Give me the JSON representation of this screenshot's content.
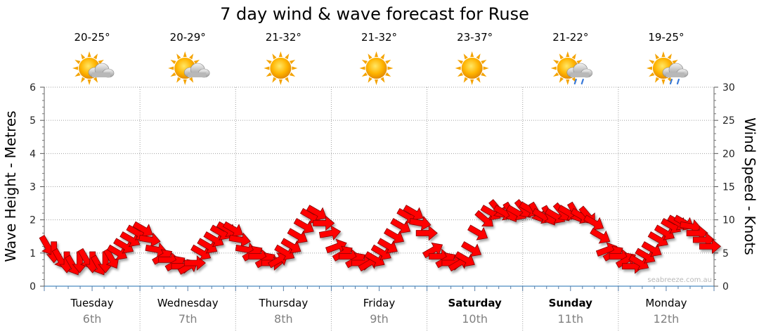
{
  "chart_data": {
    "type": "line",
    "title": "7 day wind & wave forecast for Ruse",
    "ylabel_left": "Wave Height - Metres",
    "ylabel_right": "Wind Speed - Knots",
    "ylim_left": [
      0,
      6
    ],
    "ylim_right": [
      0,
      30
    ],
    "left_ticks": [
      "0",
      "1",
      "2",
      "3",
      "4",
      "5",
      "6"
    ],
    "right_ticks": [
      "0",
      "5",
      "10",
      "15",
      "20",
      "25",
      "30"
    ],
    "grid": true,
    "days": [
      {
        "day": "Tuesday",
        "date": "6th",
        "bold": false,
        "temp": "20-25°",
        "icon": "partly-cloudy-icon"
      },
      {
        "day": "Wednesday",
        "date": "7th",
        "bold": false,
        "temp": "20-29°",
        "icon": "partly-cloudy-icon"
      },
      {
        "day": "Thursday",
        "date": "8th",
        "bold": false,
        "temp": "21-32°",
        "icon": "sunny-icon"
      },
      {
        "day": "Friday",
        "date": "9th",
        "bold": false,
        "temp": "21-32°",
        "icon": "sunny-icon"
      },
      {
        "day": "Saturday",
        "date": "10th",
        "bold": true,
        "temp": "23-37°",
        "icon": "sunny-icon"
      },
      {
        "day": "Sunday",
        "date": "11th",
        "bold": true,
        "temp": "21-22°",
        "icon": "showers-icon"
      },
      {
        "day": "Monday",
        "date": "12th",
        "bold": false,
        "temp": "19-25°",
        "icon": "showers-icon"
      }
    ],
    "series": [
      {
        "name": "Wind Speed",
        "unit": "knots",
        "arrow_color": "#ff0000",
        "values": [
          6,
          5,
          4,
          3.5,
          3,
          3.5,
          4,
          3.5,
          3,
          3.5,
          4,
          5,
          6,
          7,
          8,
          8.5,
          7,
          5.5,
          4.5,
          4,
          3.5,
          3,
          3,
          3.5,
          5,
          6,
          7,
          8,
          8.5,
          8.5,
          7,
          5.5,
          5,
          4.5,
          4,
          3.5,
          4,
          5,
          6,
          7.5,
          9,
          10.5,
          11,
          9.5,
          8,
          6,
          5,
          4.5,
          4,
          3.5,
          3.5,
          4,
          5,
          6,
          7.5,
          9,
          10.5,
          11,
          9.5,
          8,
          5.5,
          4.5,
          4,
          3.5,
          3.5,
          4,
          5.5,
          8,
          10,
          11,
          11.5,
          11,
          11,
          11,
          11.5,
          11.5,
          11,
          10.5,
          10.5,
          10.5,
          11,
          11,
          11,
          10.5,
          10.5,
          9.5,
          7.5,
          5.5,
          5,
          4.5,
          4,
          3,
          3.5,
          4.5,
          5.5,
          7,
          8,
          9,
          9.5,
          9.5,
          9,
          8,
          7,
          6
        ],
        "directions_deg": [
          330,
          0,
          330,
          0,
          330,
          0,
          330,
          0,
          330,
          0,
          330,
          300,
          300,
          300,
          300,
          300,
          280,
          280,
          240,
          270,
          240,
          270,
          240,
          270,
          300,
          300,
          300,
          300,
          300,
          300,
          280,
          280,
          240,
          270,
          240,
          270,
          240,
          300,
          300,
          300,
          300,
          300,
          300,
          270,
          260,
          250,
          240,
          270,
          240,
          270,
          240,
          300,
          300,
          300,
          300,
          300,
          300,
          300,
          280,
          270,
          240,
          270,
          240,
          270,
          240,
          300,
          300,
          300,
          310,
          300,
          320,
          300,
          330,
          300,
          320,
          300,
          330,
          300,
          330,
          300,
          320,
          300,
          330,
          300,
          320,
          300,
          300,
          250,
          240,
          270,
          240,
          270,
          300,
          300,
          300,
          300,
          300,
          300,
          300,
          300,
          280,
          270,
          270,
          270
        ]
      }
    ],
    "watermark": "seabreeze.com.au"
  }
}
